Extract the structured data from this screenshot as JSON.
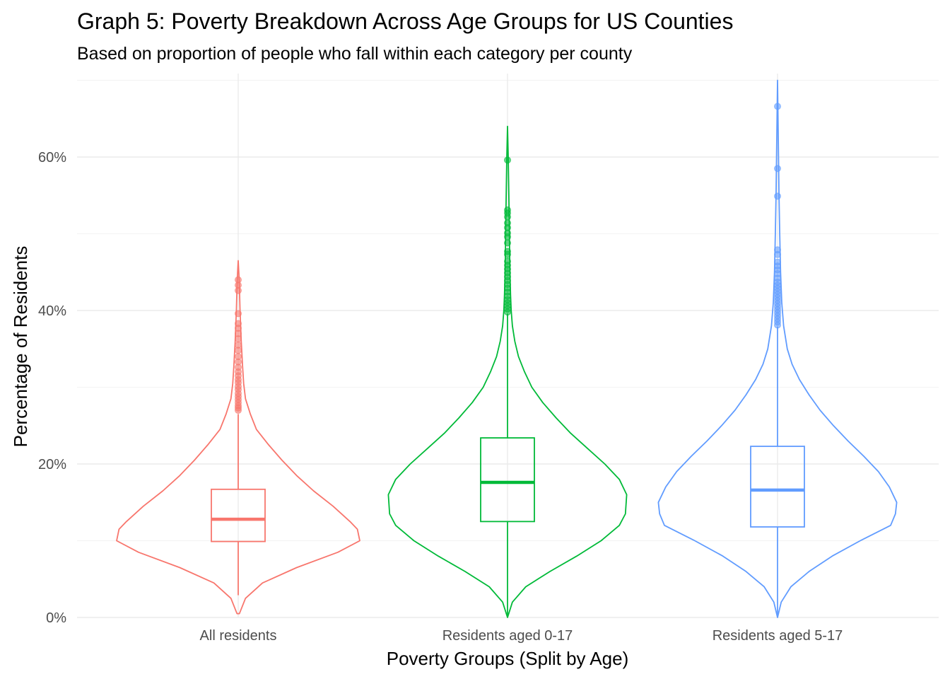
{
  "chart_data": {
    "type": "violin",
    "title": "Graph 5: Poverty Breakdown Across Age Groups for US Counties",
    "subtitle": "Based on proportion of people who fall within each category per county",
    "xlabel": "Poverty Groups (Split by Age)",
    "ylabel": "Percentage of Residents",
    "ylim": [
      0,
      70
    ],
    "y_ticks": [
      0,
      20,
      40,
      60
    ],
    "y_tick_labels": [
      "0%",
      "20%",
      "40%",
      "60%"
    ],
    "grid": true,
    "legend": "none",
    "categories": [
      "All residents",
      "Residents aged 0-17",
      "Residents aged 5-17"
    ],
    "series": [
      {
        "color": "#F8766D",
        "box": {
          "q1": 9.9,
          "median": 12.8,
          "q3": 16.7,
          "whisker_low": 2.9,
          "whisker_high": 26.5
        },
        "violin": {
          "y": [
            0.5,
            2.5,
            4.5,
            6.5,
            8.5,
            10.0,
            11.5,
            12.5,
            14.5,
            16.5,
            18.5,
            20.5,
            22.5,
            24.5,
            26.5,
            28.5,
            30.5,
            33.0,
            36.0,
            40.0,
            44.0,
            46.5
          ],
          "width": [
            0.01,
            0.06,
            0.2,
            0.48,
            0.82,
            1.0,
            0.98,
            0.92,
            0.78,
            0.62,
            0.48,
            0.36,
            0.25,
            0.15,
            0.1,
            0.06,
            0.045,
            0.035,
            0.025,
            0.015,
            0.008,
            0.0
          ]
        },
        "outliers": [
          27.0,
          27.3,
          27.6,
          28.0,
          28.4,
          28.8,
          29.2,
          29.7,
          30.1,
          30.6,
          31.0,
          31.5,
          32.0,
          32.6,
          33.3,
          34.0,
          34.8,
          35.5,
          36.3,
          37.0,
          37.7,
          38.3,
          39.6,
          42.6,
          43.3,
          44.0
        ]
      },
      {
        "color": "#00BA38",
        "box": {
          "q1": 12.5,
          "median": 17.6,
          "q3": 23.4,
          "whisker_low": 0.0,
          "whisker_high": 39.6
        },
        "violin": {
          "y": [
            0.0,
            2.0,
            4.0,
            6.0,
            8.0,
            10.0,
            12.0,
            13.5,
            16.0,
            18.0,
            20.0,
            22.0,
            24.0,
            26.0,
            28.0,
            30.0,
            32.0,
            34.0,
            36.0,
            38.0,
            40.0,
            42.0,
            45.0,
            48.0,
            52.0,
            56.0,
            60.0,
            64.0
          ],
          "width": [
            0.0,
            0.04,
            0.15,
            0.35,
            0.57,
            0.77,
            0.92,
            0.97,
            0.98,
            0.92,
            0.8,
            0.66,
            0.52,
            0.4,
            0.29,
            0.2,
            0.14,
            0.09,
            0.06,
            0.04,
            0.03,
            0.025,
            0.02,
            0.017,
            0.014,
            0.01,
            0.006,
            0.0
          ]
        },
        "outliers": [
          39.8,
          40.2,
          40.6,
          41.0,
          41.4,
          41.9,
          42.4,
          42.9,
          43.4,
          43.9,
          44.4,
          44.9,
          45.4,
          45.9,
          46.4,
          47.3,
          47.7,
          48.8,
          49.6,
          50.1,
          50.8,
          51.4,
          52.2,
          52.7,
          53.1,
          59.6
        ]
      },
      {
        "color": "#619CFF",
        "box": {
          "q1": 11.8,
          "median": 16.6,
          "q3": 22.3,
          "whisker_low": 0.0,
          "whisker_high": 37.9
        },
        "violin": {
          "y": [
            0.0,
            2.0,
            4.0,
            6.0,
            8.0,
            10.0,
            12.0,
            13.5,
            15.0,
            17.0,
            19.0,
            21.0,
            23.0,
            25.0,
            27.0,
            29.0,
            31.0,
            33.0,
            35.0,
            38.0,
            41.0,
            45.0,
            50.0,
            55.0,
            60.0,
            65.0,
            70.0
          ],
          "width": [
            0.0,
            0.03,
            0.11,
            0.26,
            0.45,
            0.68,
            0.93,
            0.97,
            0.98,
            0.92,
            0.83,
            0.71,
            0.58,
            0.46,
            0.35,
            0.26,
            0.18,
            0.12,
            0.08,
            0.05,
            0.035,
            0.025,
            0.018,
            0.012,
            0.008,
            0.004,
            0.0
          ]
        },
        "outliers": [
          38.1,
          38.5,
          38.9,
          39.3,
          39.7,
          40.1,
          40.5,
          40.9,
          41.3,
          41.7,
          42.1,
          42.5,
          42.9,
          43.3,
          43.7,
          44.2,
          44.8,
          45.3,
          45.8,
          46.3,
          47.3,
          47.9,
          54.9,
          58.5,
          66.6
        ]
      }
    ]
  }
}
